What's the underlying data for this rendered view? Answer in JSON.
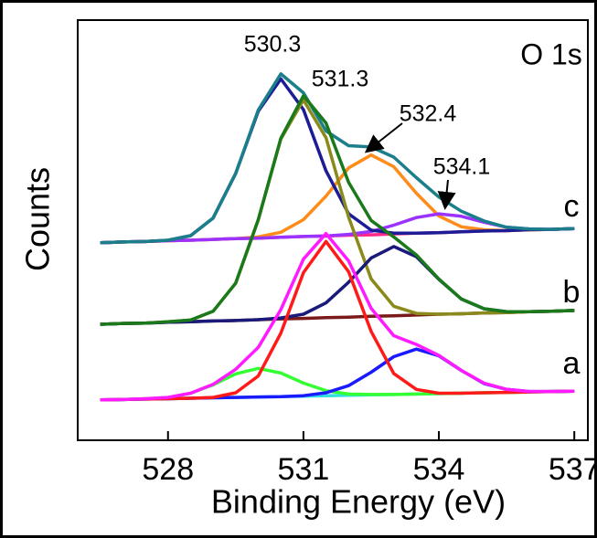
{
  "chart_data": {
    "type": "line",
    "title": "O 1s",
    "xlabel": "Binding Energy (eV)",
    "ylabel": "Counts",
    "xlim": [
      526,
      537.3
    ],
    "xticks": [
      528,
      531,
      534,
      537
    ],
    "ylim": [
      0,
      100
    ],
    "annotations": [
      "530.3",
      "531.3",
      "532.4",
      "534.1"
    ],
    "spectrum_labels": [
      "c",
      "b",
      "a"
    ],
    "x": [
      526.5,
      527,
      527.5,
      528,
      528.5,
      529,
      529.5,
      530,
      530.5,
      531,
      531.5,
      532,
      532.5,
      533,
      533.5,
      534,
      534.5,
      535,
      535.5,
      536,
      536.5,
      537
    ],
    "series": [
      {
        "color": "#ff2a8a",
        "values": [
          47.0,
          47.2,
          47.3,
          47.5,
          47.6,
          47.8,
          48.0,
          48.1,
          48.3,
          48.5,
          48.6,
          48.8,
          48.9,
          49.1,
          49.3,
          49.4,
          49.6,
          49.8,
          49.9,
          50.1,
          50.2,
          50.4
        ]
      },
      {
        "color": "#ff8c1a",
        "values": [
          47.0,
          47.2,
          47.3,
          47.5,
          47.6,
          47.8,
          48.0,
          48.4,
          49.5,
          52.5,
          58.1,
          64.8,
          67.9,
          65.1,
          58.8,
          53.4,
          50.8,
          50.1,
          49.9,
          50.1,
          50.2,
          50.4
        ]
      },
      {
        "color": "#9a33ff",
        "values": [
          47.0,
          47.2,
          47.3,
          47.5,
          47.6,
          47.8,
          48.0,
          48.1,
          48.3,
          48.5,
          48.6,
          49.0,
          49.7,
          51.2,
          53.0,
          53.9,
          53.3,
          51.9,
          50.7,
          50.3,
          50.2,
          50.4
        ]
      },
      {
        "color": "#1c1c96",
        "values": [
          47.0,
          47.2,
          47.3,
          47.6,
          48.7,
          52.9,
          63.5,
          78.3,
          86.0,
          78.7,
          64.1,
          53.9,
          50.0,
          49.3,
          49.3,
          49.4,
          49.6,
          49.8,
          49.9,
          50.1,
          50.2,
          50.4
        ]
      },
      {
        "color": "#1a7f8a",
        "values": [
          47.0,
          47.2,
          47.3,
          47.6,
          48.7,
          52.9,
          63.5,
          78.6,
          87.2,
          82.7,
          73.6,
          70.1,
          69.8,
          67.4,
          62.5,
          57.9,
          54.5,
          52.2,
          50.7,
          50.3,
          50.2,
          50.4
        ]
      },
      {
        "color": "#7a1a1a",
        "values": [
          27.6,
          27.8,
          27.9,
          28.1,
          28.2,
          28.4,
          28.5,
          28.7,
          28.9,
          29.0,
          29.2,
          29.3,
          29.5,
          29.6,
          29.8,
          30.0,
          30.1,
          30.3,
          30.4,
          30.6,
          30.7,
          30.9
        ]
      },
      {
        "color": "#8a8a1a",
        "values": [
          27.6,
          27.8,
          27.9,
          28.2,
          28.6,
          30.7,
          37.4,
          52.5,
          71.7,
          81.0,
          72.0,
          53.1,
          38.4,
          31.9,
          30.2,
          30.0,
          30.1,
          30.3,
          30.4,
          30.6,
          30.7,
          30.9
        ]
      },
      {
        "color": "#1a1a7a",
        "values": [
          27.6,
          27.8,
          27.9,
          28.1,
          28.2,
          28.4,
          28.5,
          28.7,
          29.1,
          30.0,
          32.7,
          37.6,
          43.4,
          46.1,
          43.7,
          38.3,
          33.6,
          31.3,
          30.6,
          30.6,
          30.7,
          30.9
        ]
      },
      {
        "color": "#1a7a1a",
        "values": [
          27.6,
          27.8,
          27.9,
          28.2,
          28.6,
          30.7,
          37.4,
          52.5,
          71.9,
          82.0,
          75.5,
          61.4,
          52.3,
          48.4,
          44.1,
          38.4,
          33.6,
          31.3,
          30.6,
          30.6,
          30.7,
          30.9
        ]
      },
      {
        "color": "#33e0e0",
        "values": [
          9.6,
          9.7,
          9.8,
          9.9,
          10.0,
          10.1,
          10.2,
          10.3,
          10.4,
          10.5,
          10.6,
          10.7,
          10.8,
          10.9,
          11.0,
          11.1,
          11.2,
          11.3,
          11.4,
          11.5,
          11.6,
          11.7
        ]
      },
      {
        "color": "#33ff33",
        "values": [
          9.6,
          9.7,
          9.9,
          10.2,
          11.2,
          13.2,
          15.8,
          17.1,
          16.0,
          13.6,
          11.8,
          11.0,
          10.9,
          10.9,
          11.0,
          11.1,
          11.2,
          11.3,
          11.4,
          11.5,
          11.6,
          11.7
        ]
      },
      {
        "color": "#1a1aff",
        "values": [
          9.6,
          9.7,
          9.8,
          9.9,
          10.0,
          10.1,
          10.2,
          10.3,
          10.4,
          10.6,
          11.3,
          13.0,
          16.2,
          19.9,
          21.7,
          20.1,
          16.6,
          13.5,
          12.1,
          11.6,
          11.6,
          11.7
        ]
      },
      {
        "color": "#ff1a1a",
        "values": [
          9.6,
          9.7,
          9.8,
          9.9,
          10.0,
          10.2,
          11.3,
          15.3,
          25.5,
          39.9,
          47.3,
          40.1,
          25.9,
          15.9,
          12.1,
          11.2,
          11.2,
          11.3,
          11.4,
          11.5,
          11.6,
          11.7
        ]
      },
      {
        "color": "#ff1aff",
        "values": [
          9.6,
          9.7,
          9.9,
          10.2,
          11.2,
          13.3,
          16.9,
          22.1,
          31.1,
          43.1,
          49.2,
          42.7,
          31.4,
          24.9,
          22.8,
          20.2,
          16.6,
          13.6,
          12.1,
          11.6,
          11.6,
          11.7
        ]
      }
    ]
  }
}
